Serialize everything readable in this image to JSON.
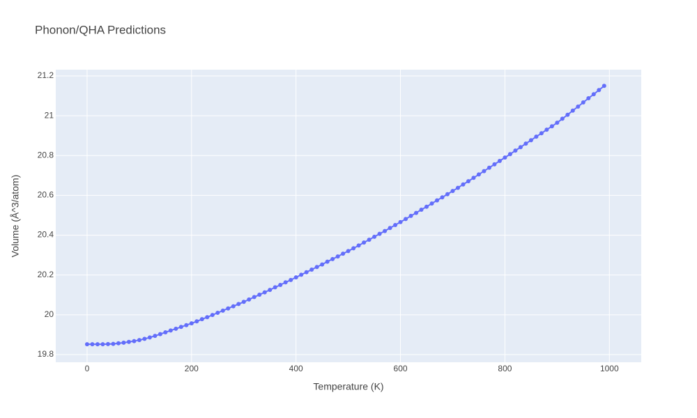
{
  "chart_data": {
    "type": "line",
    "title": "Phonon/QHA Predictions",
    "xlabel": "Temperature (K)",
    "ylabel": "Volume (Å^3/atom)",
    "x": [
      0,
      10,
      20,
      30,
      40,
      50,
      60,
      70,
      80,
      90,
      100,
      110,
      120,
      130,
      140,
      150,
      160,
      170,
      180,
      190,
      200,
      210,
      220,
      230,
      240,
      250,
      260,
      270,
      280,
      290,
      300,
      310,
      320,
      330,
      340,
      350,
      360,
      370,
      380,
      390,
      400,
      410,
      420,
      430,
      440,
      450,
      460,
      470,
      480,
      490,
      500,
      510,
      520,
      530,
      540,
      550,
      560,
      570,
      580,
      590,
      600,
      610,
      620,
      630,
      640,
      650,
      660,
      670,
      680,
      690,
      700,
      710,
      720,
      730,
      740,
      750,
      760,
      770,
      780,
      790,
      800,
      810,
      820,
      830,
      840,
      850,
      860,
      870,
      880,
      890,
      900,
      910,
      920,
      930,
      940,
      950,
      960,
      970,
      980,
      990
    ],
    "series": [
      {
        "name": "Volume",
        "color": "#636efa",
        "values": [
          19.852,
          19.852,
          19.852,
          19.852,
          19.853,
          19.854,
          19.857,
          19.86,
          19.864,
          19.868,
          19.873,
          19.879,
          19.886,
          19.894,
          19.903,
          19.912,
          19.921,
          19.93,
          19.939,
          19.948,
          19.957,
          19.967,
          19.978,
          19.988,
          19.999,
          20.01,
          20.021,
          20.032,
          20.043,
          20.054,
          20.065,
          20.077,
          20.089,
          20.101,
          20.113,
          20.125,
          20.138,
          20.15,
          20.163,
          20.175,
          20.188,
          20.201,
          20.214,
          20.227,
          20.24,
          20.253,
          20.267,
          20.28,
          20.293,
          20.307,
          20.32,
          20.334,
          20.348,
          20.363,
          20.377,
          20.392,
          20.407,
          20.421,
          20.436,
          20.451,
          20.466,
          20.481,
          20.497,
          20.512,
          20.528,
          20.543,
          20.559,
          20.575,
          20.59,
          20.606,
          20.622,
          20.638,
          20.655,
          20.671,
          20.688,
          20.705,
          20.722,
          20.739,
          20.756,
          20.773,
          20.79,
          20.807,
          20.825,
          20.842,
          20.86,
          20.877,
          20.895,
          20.912,
          20.93,
          20.947,
          20.965,
          20.985,
          21.005,
          21.026,
          21.046,
          21.067,
          21.088,
          21.108,
          21.129,
          21.15
        ]
      }
    ],
    "xlim": [
      -60,
      1061
    ],
    "ylim": [
      19.7615,
      21.2315
    ],
    "xticks": [
      0,
      200,
      400,
      600,
      800,
      1000
    ],
    "yticks": [
      19.8,
      20,
      20.2,
      20.4,
      20.6,
      20.8,
      21,
      21.2
    ],
    "grid": true
  }
}
